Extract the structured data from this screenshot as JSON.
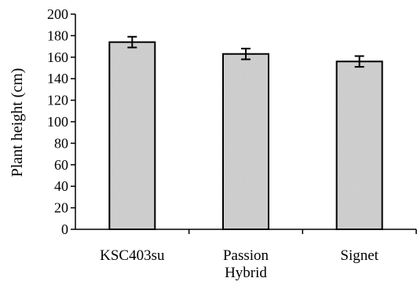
{
  "chart_data": {
    "type": "bar",
    "title": "",
    "xlabel": "",
    "ylabel": "Plant height (cm)",
    "categories": [
      [
        "KSC403su"
      ],
      [
        "Passion",
        "Hybrid"
      ],
      [
        "Signet"
      ]
    ],
    "values": [
      174,
      163,
      156
    ],
    "error": [
      5,
      5,
      5
    ],
    "ylim": [
      0,
      200
    ],
    "yticks": [
      0,
      20,
      40,
      60,
      80,
      100,
      120,
      140,
      160,
      180,
      200
    ],
    "grid": false,
    "legend": "none",
    "bar_color": "#cfcfcf",
    "bar_edge_color": "#000000",
    "axis_color": "#000000"
  }
}
